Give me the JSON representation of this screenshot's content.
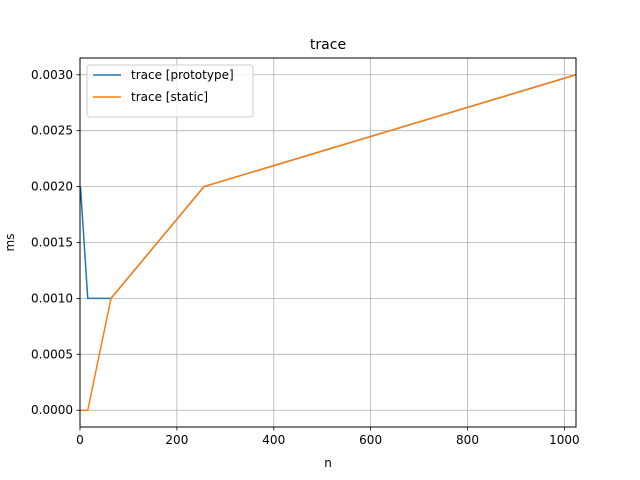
{
  "chart_data": {
    "type": "line",
    "title": "trace",
    "xlabel": "n",
    "ylabel": "ms",
    "xlim": [
      0,
      1024
    ],
    "ylim": [
      -0.00015,
      0.00315
    ],
    "xticks": [
      0,
      200,
      400,
      600,
      800,
      1000
    ],
    "xtick_labels": [
      "0",
      "200",
      "400",
      "600",
      "800",
      "1000"
    ],
    "yticks": [
      0.0,
      0.0005,
      0.001,
      0.0015,
      0.002,
      0.0025,
      0.003
    ],
    "ytick_labels": [
      "0.0000",
      "0.0005",
      "0.0010",
      "0.0015",
      "0.0020",
      "0.0025",
      "0.0030"
    ],
    "grid": true,
    "legend_position": "top-left",
    "series": [
      {
        "name": "trace [prototype]",
        "color": "#1f77b4",
        "x": [
          1,
          16,
          64,
          256,
          1024
        ],
        "y": [
          0.002,
          0.001,
          0.001,
          0.002,
          0.003
        ]
      },
      {
        "name": "trace [static]",
        "color": "#ff7f0e",
        "x": [
          1,
          16,
          64,
          256,
          1024
        ],
        "y": [
          0.0,
          0.0,
          0.001,
          0.002,
          0.003
        ]
      }
    ]
  }
}
